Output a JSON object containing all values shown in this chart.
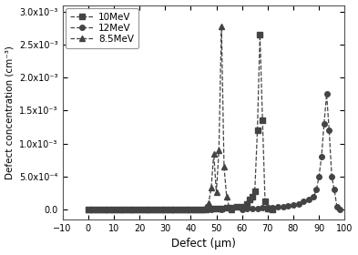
{
  "title": "",
  "xlabel": "Defect (μm)",
  "ylabel": "Defect concentration (cm⁻³)",
  "xlim": [
    -10,
    100
  ],
  "ylim": [
    -0.00015,
    0.0031
  ],
  "yticks": [
    0.0,
    0.0005,
    0.001,
    0.0015,
    0.002,
    0.0025,
    0.003
  ],
  "ytick_labels": [
    "0.0",
    "5.0x10⁻⁴",
    "1.0x10⁻³",
    "1.5x10⁻³",
    "2.0x10⁻³",
    "2.5x10⁻³",
    "3.0x10⁻³"
  ],
  "xticks": [
    -10,
    0,
    10,
    20,
    30,
    40,
    50,
    60,
    70,
    80,
    90,
    100
  ],
  "series": [
    {
      "label": "10MeV",
      "color": "#444444",
      "marker": "s",
      "markersize": 4,
      "linestyle": "--",
      "linewidth": 0.9,
      "x": [
        0,
        2,
        4,
        6,
        8,
        10,
        12,
        14,
        16,
        18,
        20,
        22,
        24,
        26,
        28,
        30,
        32,
        34,
        36,
        38,
        40,
        42,
        44,
        46,
        48,
        50,
        52,
        54,
        56,
        58,
        60,
        62,
        63,
        64,
        65,
        66,
        67,
        68,
        69,
        70,
        71,
        72
      ],
      "y": [
        0.0,
        0.0,
        0.0,
        0.0,
        0.0,
        0.0,
        0.0,
        0.0,
        0.0,
        0.0,
        0.0,
        0.0,
        0.0,
        0.0,
        0.0,
        0.0,
        0.0,
        0.0,
        0.0,
        0.0,
        0.0,
        0.0,
        0.0,
        0.0,
        1e-05,
        1.5e-05,
        2e-05,
        2.5e-05,
        3e-05,
        4e-05,
        5e-05,
        8e-05,
        0.00015,
        0.0002,
        0.00028,
        0.0012,
        0.00265,
        0.00135,
        0.00012,
        2e-05,
        1e-05,
        0.0
      ]
    },
    {
      "label": "12MeV",
      "color": "#444444",
      "marker": "o",
      "markersize": 4,
      "linestyle": "--",
      "linewidth": 0.9,
      "x": [
        0,
        4,
        8,
        12,
        16,
        20,
        24,
        28,
        32,
        36,
        40,
        44,
        48,
        52,
        56,
        60,
        62,
        64,
        66,
        68,
        70,
        72,
        74,
        76,
        78,
        80,
        82,
        84,
        86,
        88,
        89,
        90,
        91,
        92,
        93,
        94,
        95,
        96,
        97,
        98
      ],
      "y": [
        0.0,
        0.0,
        0.0,
        0.0,
        0.0,
        0.0,
        0.0,
        0.0,
        0.0,
        0.0,
        0.0,
        0.0,
        0.0,
        0.0,
        0.0,
        0.0,
        1e-05,
        1.5e-05,
        2e-05,
        2.5e-05,
        3e-05,
        3.5e-05,
        4e-05,
        5e-05,
        6e-05,
        7e-05,
        9e-05,
        0.00012,
        0.00015,
        0.0002,
        0.0003,
        0.0005,
        0.0008,
        0.0013,
        0.00175,
        0.0012,
        0.0005,
        0.0003,
        5e-05,
        0.0
      ]
    },
    {
      "label": "8.5MeV",
      "color": "#444444",
      "marker": "^",
      "markersize": 4,
      "linestyle": "--",
      "linewidth": 0.9,
      "x": [
        0,
        2,
        4,
        6,
        8,
        10,
        12,
        14,
        16,
        18,
        20,
        22,
        24,
        26,
        28,
        30,
        32,
        34,
        36,
        38,
        40,
        42,
        44,
        46,
        47,
        48,
        49,
        50,
        51,
        52,
        53,
        54,
        55,
        56
      ],
      "y": [
        0.0,
        0.0,
        0.0,
        0.0,
        0.0,
        0.0,
        0.0,
        0.0,
        0.0,
        0.0,
        0.0,
        0.0,
        0.0,
        0.0,
        0.0,
        0.0,
        0.0,
        0.0,
        0.0,
        0.0,
        0.0,
        0.0,
        0.0,
        5e-05,
        0.0001,
        0.00033,
        0.00085,
        0.00026,
        0.0009,
        0.00278,
        0.00065,
        0.0002,
        3e-05,
        0.0
      ]
    }
  ],
  "marker_every": {
    "10MeV": [
      0,
      5,
      10,
      15,
      20,
      25,
      30,
      35,
      36,
      37,
      38,
      39,
      40,
      41
    ],
    "12MeV": [
      0,
      4,
      8,
      12,
      16,
      20,
      24,
      28,
      32,
      36,
      37,
      38,
      39
    ],
    "8.5MeV": [
      0,
      4,
      8,
      12,
      16,
      20,
      24,
      28,
      29,
      30,
      31,
      32,
      33
    ]
  },
  "figsize": [
    3.93,
    2.8
  ],
  "dpi": 100
}
